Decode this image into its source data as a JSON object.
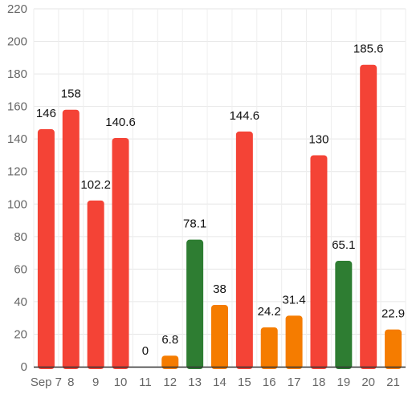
{
  "chart_data": {
    "type": "bar",
    "categories": [
      "Sep 7",
      "8",
      "9",
      "10",
      "11",
      "12",
      "13",
      "14",
      "15",
      "16",
      "17",
      "18",
      "19",
      "20",
      "21"
    ],
    "values": [
      146,
      158,
      102.2,
      140.6,
      0,
      6.8,
      78.1,
      38,
      144.6,
      24.2,
      31.4,
      130,
      65.1,
      185.6,
      22.9
    ],
    "data_labels": [
      "146",
      "158",
      "102.2",
      "140.6",
      "0",
      "6.8",
      "78.1",
      "38",
      "144.6",
      "24.2",
      "31.4",
      "130",
      "65.1",
      "185.6",
      "22.9"
    ],
    "bar_colors": [
      "#f44336",
      "#f44336",
      "#f44336",
      "#f44336",
      "#f44336",
      "#f57c00",
      "#2e7d32",
      "#f57c00",
      "#f44336",
      "#f57c00",
      "#f57c00",
      "#f44336",
      "#2e7d32",
      "#f44336",
      "#f57c00"
    ],
    "ylim": [
      0,
      220
    ],
    "yticks": [
      0,
      20,
      40,
      60,
      80,
      100,
      120,
      140,
      160,
      180,
      200,
      220
    ],
    "title": "",
    "xlabel": "",
    "ylabel": "",
    "grid": true,
    "legend": "none"
  }
}
